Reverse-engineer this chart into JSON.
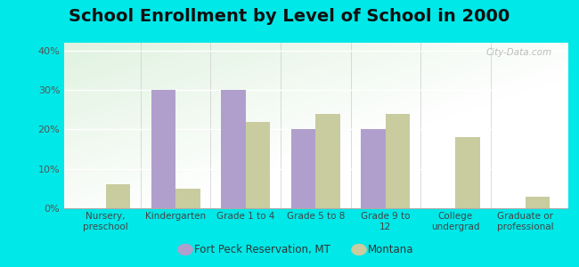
{
  "title": "School Enrollment by Level of School in 2000",
  "categories": [
    "Nursery,\npreschool",
    "Kindergarten",
    "Grade 1 to 4",
    "Grade 5 to 8",
    "Grade 9 to\n12",
    "College\nundergrad",
    "Graduate or\nprofessional"
  ],
  "fort_peck": [
    0,
    30,
    30,
    20,
    20,
    0,
    0
  ],
  "montana": [
    6,
    5,
    22,
    24,
    24,
    18,
    3
  ],
  "fort_peck_color": "#b09fcc",
  "montana_color": "#c8cc9f",
  "background_outer": "#00e8e8",
  "ylim": [
    0,
    42
  ],
  "yticks": [
    0,
    10,
    20,
    30,
    40
  ],
  "ytick_labels": [
    "0%",
    "10%",
    "20%",
    "30%",
    "40%"
  ],
  "title_fontsize": 14,
  "legend_label_1": "Fort Peck Reservation, MT",
  "legend_label_2": "Montana",
  "bar_width": 0.35,
  "watermark": "City-Data.com"
}
